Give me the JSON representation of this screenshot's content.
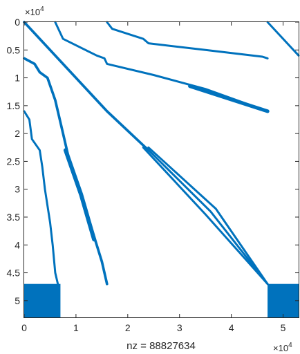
{
  "chart_data": {
    "type": "spy",
    "title": "",
    "xlabel": "nz = 88827634",
    "ylabel": "",
    "x_multiplier": "×10",
    "x_multiplier_exp": "4",
    "y_multiplier": "×10",
    "y_multiplier_exp": "4",
    "xlim": [
      0,
      5.3
    ],
    "ylim": [
      0,
      5.3
    ],
    "y_reversed": true,
    "xticks": [
      {
        "value": 0,
        "label": "0"
      },
      {
        "value": 1,
        "label": "1"
      },
      {
        "value": 2,
        "label": "2"
      },
      {
        "value": 3,
        "label": "3"
      },
      {
        "value": 4,
        "label": "4"
      },
      {
        "value": 5,
        "label": "5"
      }
    ],
    "yticks": [
      {
        "value": 0,
        "label": "0"
      },
      {
        "value": 0.5,
        "label": "0.5"
      },
      {
        "value": 1,
        "label": "1"
      },
      {
        "value": 1.5,
        "label": "1.5"
      },
      {
        "value": 2,
        "label": "2"
      },
      {
        "value": 2.5,
        "label": "2.5"
      },
      {
        "value": 3,
        "label": "3"
      },
      {
        "value": 3.5,
        "label": "3.5"
      },
      {
        "value": 4,
        "label": "4"
      },
      {
        "value": 4.5,
        "label": "4.5"
      },
      {
        "value": 5,
        "label": "5"
      }
    ],
    "grid": false,
    "marker_color": "#0072BD",
    "bands": [
      {
        "name": "main-diagonal-upper",
        "points": [
          [
            0.0,
            0.0
          ],
          [
            1.6,
            1.6
          ],
          [
            2.4,
            2.3
          ]
        ],
        "width": 0.05
      },
      {
        "name": "main-diagonal-fan-1",
        "points": [
          [
            2.3,
            2.25
          ],
          [
            3.5,
            3.45
          ],
          [
            4.7,
            4.7
          ]
        ],
        "width": 0.04
      },
      {
        "name": "main-diagonal-fan-2",
        "points": [
          [
            2.35,
            2.25
          ],
          [
            3.6,
            3.4
          ],
          [
            4.7,
            4.7
          ]
        ],
        "width": 0.04
      },
      {
        "name": "main-diagonal-fan-3",
        "points": [
          [
            2.4,
            2.25
          ],
          [
            3.7,
            3.35
          ],
          [
            4.7,
            4.7
          ]
        ],
        "width": 0.04
      },
      {
        "name": "upper-band-1",
        "points": [
          [
            0.6,
            0.0
          ],
          [
            0.75,
            0.3
          ],
          [
            1.4,
            0.6
          ],
          [
            1.55,
            0.65
          ],
          [
            1.6,
            0.75
          ],
          [
            2.5,
            0.95
          ],
          [
            3.5,
            1.2
          ],
          [
            4.7,
            1.6
          ]
        ],
        "width": 0.04
      },
      {
        "name": "upper-band-1-thick",
        "points": [
          [
            3.2,
            1.15
          ],
          [
            4.7,
            1.6
          ]
        ],
        "width": 0.07
      },
      {
        "name": "upper-band-2",
        "points": [
          [
            1.6,
            0.0
          ],
          [
            1.7,
            0.12
          ],
          [
            2.3,
            0.3
          ],
          [
            2.4,
            0.38
          ],
          [
            3.5,
            0.5
          ],
          [
            4.6,
            0.62
          ],
          [
            4.7,
            0.65
          ]
        ],
        "width": 0.04
      },
      {
        "name": "upper-band-3",
        "points": [
          [
            4.7,
            0.0
          ],
          [
            5.3,
            0.6
          ]
        ],
        "width": 0.04
      },
      {
        "name": "lower-band-1",
        "points": [
          [
            0.0,
            0.65
          ],
          [
            0.2,
            0.75
          ],
          [
            0.3,
            0.9
          ],
          [
            0.45,
            1.0
          ],
          [
            0.6,
            1.4
          ],
          [
            0.75,
            2.0
          ],
          [
            0.9,
            2.6
          ],
          [
            1.2,
            3.4
          ],
          [
            1.5,
            4.3
          ],
          [
            1.6,
            4.7
          ]
        ],
        "width": 0.05
      },
      {
        "name": "lower-band-1-thick",
        "points": [
          [
            0.8,
            2.3
          ],
          [
            1.1,
            3.1
          ],
          [
            1.35,
            3.9
          ]
        ],
        "width": 0.08
      },
      {
        "name": "lower-band-2",
        "points": [
          [
            0.0,
            1.6
          ],
          [
            0.1,
            1.75
          ],
          [
            0.15,
            2.1
          ],
          [
            0.3,
            2.3
          ],
          [
            0.35,
            2.6
          ],
          [
            0.4,
            3.0
          ],
          [
            0.5,
            3.6
          ],
          [
            0.55,
            4.0
          ],
          [
            0.6,
            4.5
          ],
          [
            0.65,
            4.7
          ]
        ],
        "width": 0.04
      }
    ],
    "blocks": [
      {
        "name": "block-bottom-left",
        "x": [
          0.0,
          0.7
        ],
        "y": [
          4.7,
          5.3
        ]
      },
      {
        "name": "block-bottom-right",
        "x": [
          4.7,
          5.3
        ],
        "y": [
          4.7,
          5.3
        ]
      }
    ]
  }
}
